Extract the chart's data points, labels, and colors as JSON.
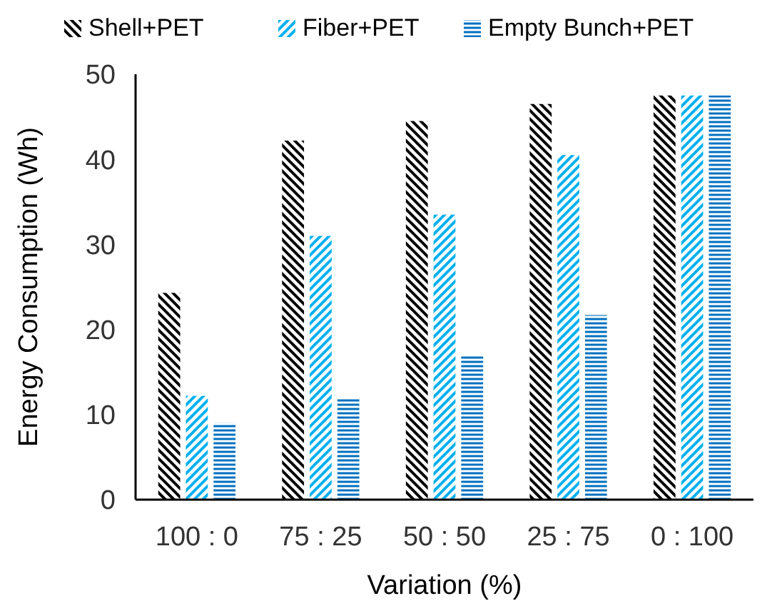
{
  "chart_data": {
    "type": "bar",
    "xlabel": "Variation (%)",
    "ylabel": "Energy Consumption (Wh)",
    "categories": [
      "100 : 0",
      "75 : 25",
      "50 : 50",
      "25 : 75",
      "0 : 100"
    ],
    "series": [
      {
        "name": "Shell+PET",
        "color": "#000000",
        "values": [
          24.3,
          42.2,
          44.5,
          46.5,
          47.5
        ]
      },
      {
        "name": "Fiber+PET",
        "color": "#00b0f0",
        "values": [
          12.2,
          31,
          33.5,
          40.5,
          47.5
        ]
      },
      {
        "name": "Empty Bunch+PET",
        "color": "#0070c0",
        "values": [
          9,
          12,
          17,
          21.7,
          47.5
        ]
      }
    ],
    "ylim": [
      0,
      50
    ],
    "yticks": [
      0,
      10,
      20,
      30,
      40,
      50
    ],
    "grid": false,
    "legend": "top"
  }
}
